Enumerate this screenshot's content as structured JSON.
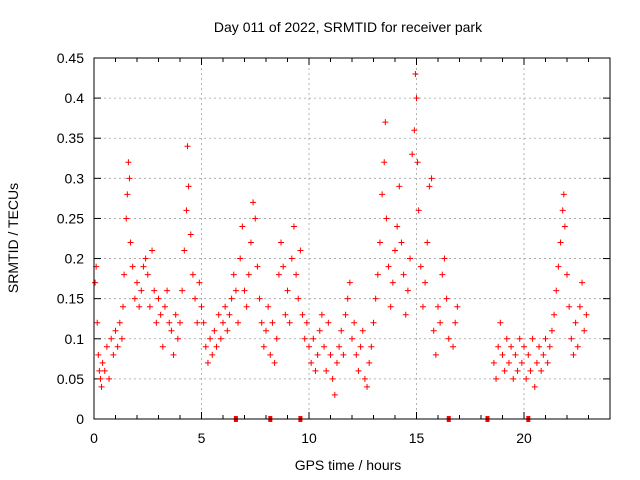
{
  "chart_data": {
    "type": "scatter",
    "title": "Day 011 of 2022, SRMTID for receiver park",
    "xlabel": "GPS time / hours",
    "ylabel": "SRMTID / TECUs",
    "xlim": [
      0,
      24
    ],
    "ylim": [
      0,
      0.45
    ],
    "xticks": [
      0,
      5,
      10,
      15,
      20
    ],
    "yticks": [
      0,
      0.05,
      0.1,
      0.15,
      0.2,
      0.25,
      0.3,
      0.35,
      0.4,
      0.45
    ],
    "ytick_labels": [
      "0",
      "0.05",
      "0.1",
      "0.15",
      "0.2",
      "0.25",
      "0.3",
      "0.35",
      "0.4",
      "0.45"
    ],
    "grid": true,
    "marker": "+",
    "color": "#ff0000",
    "series": [
      {
        "name": "SRMTID",
        "points": [
          [
            0.05,
            0.17
          ],
          [
            0.1,
            0.19
          ],
          [
            0.15,
            0.12
          ],
          [
            0.2,
            0.08
          ],
          [
            0.25,
            0.06
          ],
          [
            0.3,
            0.05
          ],
          [
            0.35,
            0.04
          ],
          [
            0.4,
            0.07
          ],
          [
            0.5,
            0.06
          ],
          [
            0.6,
            0.09
          ],
          [
            0.7,
            0.05
          ],
          [
            0.8,
            0.1
          ],
          [
            0.9,
            0.08
          ],
          [
            1.0,
            0.11
          ],
          [
            1.1,
            0.09
          ],
          [
            1.2,
            0.12
          ],
          [
            1.3,
            0.1
          ],
          [
            1.35,
            0.14
          ],
          [
            1.4,
            0.18
          ],
          [
            1.5,
            0.25
          ],
          [
            1.55,
            0.28
          ],
          [
            1.6,
            0.32
          ],
          [
            1.65,
            0.3
          ],
          [
            1.7,
            0.22
          ],
          [
            1.8,
            0.19
          ],
          [
            1.9,
            0.15
          ],
          [
            2.0,
            0.17
          ],
          [
            2.1,
            0.14
          ],
          [
            2.2,
            0.16
          ],
          [
            2.3,
            0.19
          ],
          [
            2.4,
            0.2
          ],
          [
            2.5,
            0.18
          ],
          [
            2.6,
            0.14
          ],
          [
            2.7,
            0.21
          ],
          [
            2.8,
            0.16
          ],
          [
            2.9,
            0.12
          ],
          [
            3.0,
            0.15
          ],
          [
            3.1,
            0.13
          ],
          [
            3.2,
            0.09
          ],
          [
            3.3,
            0.14
          ],
          [
            3.4,
            0.16
          ],
          [
            3.5,
            0.12
          ],
          [
            3.6,
            0.11
          ],
          [
            3.7,
            0.08
          ],
          [
            3.8,
            0.13
          ],
          [
            3.9,
            0.1
          ],
          [
            4.0,
            0.12
          ],
          [
            4.1,
            0.16
          ],
          [
            4.2,
            0.21
          ],
          [
            4.3,
            0.26
          ],
          [
            4.35,
            0.34
          ],
          [
            4.4,
            0.29
          ],
          [
            4.5,
            0.23
          ],
          [
            4.6,
            0.18
          ],
          [
            4.7,
            0.15
          ],
          [
            4.8,
            0.12
          ],
          [
            4.9,
            0.17
          ],
          [
            5.0,
            0.14
          ],
          [
            5.1,
            0.12
          ],
          [
            5.2,
            0.09
          ],
          [
            5.3,
            0.07
          ],
          [
            5.4,
            0.1
          ],
          [
            5.5,
            0.08
          ],
          [
            5.6,
            0.11
          ],
          [
            5.7,
            0.09
          ],
          [
            5.8,
            0.13
          ],
          [
            5.9,
            0.1
          ],
          [
            6.0,
            0.12
          ],
          [
            6.1,
            0.14
          ],
          [
            6.2,
            0.11
          ],
          [
            6.3,
            0.13
          ],
          [
            6.4,
            0.15
          ],
          [
            6.5,
            0.18
          ],
          [
            6.6,
            0.16
          ],
          [
            6.7,
            0.12
          ],
          [
            6.8,
            0.2
          ],
          [
            6.9,
            0.24
          ],
          [
            7.0,
            0.16
          ],
          [
            7.1,
            0.14
          ],
          [
            7.2,
            0.18
          ],
          [
            7.3,
            0.22
          ],
          [
            7.4,
            0.27
          ],
          [
            7.5,
            0.25
          ],
          [
            7.6,
            0.19
          ],
          [
            7.7,
            0.15
          ],
          [
            7.8,
            0.12
          ],
          [
            7.9,
            0.09
          ],
          [
            8.0,
            0.11
          ],
          [
            8.1,
            0.14
          ],
          [
            8.2,
            0.08
          ],
          [
            8.3,
            0.12
          ],
          [
            8.4,
            0.07
          ],
          [
            8.5,
            0.1
          ],
          [
            8.6,
            0.18
          ],
          [
            8.7,
            0.22
          ],
          [
            8.8,
            0.19
          ],
          [
            8.9,
            0.13
          ],
          [
            9.0,
            0.16
          ],
          [
            9.1,
            0.12
          ],
          [
            9.2,
            0.2
          ],
          [
            9.3,
            0.24
          ],
          [
            9.4,
            0.18
          ],
          [
            9.5,
            0.15
          ],
          [
            9.6,
            0.21
          ],
          [
            9.7,
            0.13
          ],
          [
            9.8,
            0.1
          ],
          [
            9.9,
            0.12
          ],
          [
            10.0,
            0.09
          ],
          [
            10.1,
            0.07
          ],
          [
            10.2,
            0.1
          ],
          [
            10.3,
            0.06
          ],
          [
            10.4,
            0.08
          ],
          [
            10.5,
            0.11
          ],
          [
            10.6,
            0.13
          ],
          [
            10.7,
            0.09
          ],
          [
            10.8,
            0.06
          ],
          [
            10.9,
            0.12
          ],
          [
            11.0,
            0.08
          ],
          [
            11.1,
            0.05
          ],
          [
            11.2,
            0.03
          ],
          [
            11.3,
            0.07
          ],
          [
            11.4,
            0.09
          ],
          [
            11.5,
            0.11
          ],
          [
            11.6,
            0.08
          ],
          [
            11.7,
            0.13
          ],
          [
            11.8,
            0.15
          ],
          [
            11.9,
            0.17
          ],
          [
            12.0,
            0.1
          ],
          [
            12.1,
            0.12
          ],
          [
            12.2,
            0.08
          ],
          [
            12.3,
            0.06
          ],
          [
            12.4,
            0.09
          ],
          [
            12.5,
            0.11
          ],
          [
            12.6,
            0.05
          ],
          [
            12.7,
            0.04
          ],
          [
            12.8,
            0.07
          ],
          [
            12.9,
            0.09
          ],
          [
            13.0,
            0.12
          ],
          [
            13.1,
            0.15
          ],
          [
            13.2,
            0.18
          ],
          [
            13.3,
            0.22
          ],
          [
            13.4,
            0.28
          ],
          [
            13.5,
            0.32
          ],
          [
            13.55,
            0.37
          ],
          [
            13.6,
            0.25
          ],
          [
            13.7,
            0.19
          ],
          [
            13.8,
            0.14
          ],
          [
            13.9,
            0.17
          ],
          [
            14.0,
            0.21
          ],
          [
            14.1,
            0.24
          ],
          [
            14.2,
            0.29
          ],
          [
            14.3,
            0.22
          ],
          [
            14.4,
            0.18
          ],
          [
            14.5,
            0.13
          ],
          [
            14.6,
            0.16
          ],
          [
            14.7,
            0.2
          ],
          [
            14.8,
            0.33
          ],
          [
            14.9,
            0.36
          ],
          [
            14.95,
            0.43
          ],
          [
            15.0,
            0.4
          ],
          [
            15.05,
            0.32
          ],
          [
            15.1,
            0.26
          ],
          [
            15.2,
            0.19
          ],
          [
            15.3,
            0.14
          ],
          [
            15.4,
            0.17
          ],
          [
            15.5,
            0.22
          ],
          [
            15.6,
            0.29
          ],
          [
            15.7,
            0.3
          ],
          [
            15.8,
            0.11
          ],
          [
            15.9,
            0.08
          ],
          [
            16.0,
            0.14
          ],
          [
            16.1,
            0.12
          ],
          [
            16.2,
            0.18
          ],
          [
            16.3,
            0.2
          ],
          [
            16.4,
            0.15
          ],
          [
            16.5,
            0.1
          ],
          [
            16.7,
            0.09
          ],
          [
            16.8,
            0.12
          ],
          [
            16.9,
            0.14
          ],
          [
            18.6,
            0.07
          ],
          [
            18.7,
            0.05
          ],
          [
            18.8,
            0.09
          ],
          [
            18.9,
            0.12
          ],
          [
            19.0,
            0.08
          ],
          [
            19.1,
            0.06
          ],
          [
            19.2,
            0.1
          ],
          [
            19.3,
            0.07
          ],
          [
            19.4,
            0.09
          ],
          [
            19.5,
            0.05
          ],
          [
            19.6,
            0.08
          ],
          [
            19.7,
            0.06
          ],
          [
            19.8,
            0.1
          ],
          [
            19.9,
            0.07
          ],
          [
            20.0,
            0.09
          ],
          [
            20.1,
            0.05
          ],
          [
            20.2,
            0.08
          ],
          [
            20.3,
            0.06
          ],
          [
            20.4,
            0.1
          ],
          [
            20.5,
            0.04
          ],
          [
            20.6,
            0.07
          ],
          [
            20.7,
            0.09
          ],
          [
            20.8,
            0.06
          ],
          [
            20.9,
            0.08
          ],
          [
            21.0,
            0.1
          ],
          [
            21.1,
            0.07
          ],
          [
            21.2,
            0.09
          ],
          [
            21.3,
            0.11
          ],
          [
            21.4,
            0.13
          ],
          [
            21.5,
            0.16
          ],
          [
            21.6,
            0.19
          ],
          [
            21.7,
            0.22
          ],
          [
            21.8,
            0.26
          ],
          [
            21.85,
            0.28
          ],
          [
            21.9,
            0.24
          ],
          [
            22.0,
            0.18
          ],
          [
            22.1,
            0.14
          ],
          [
            22.2,
            0.1
          ],
          [
            22.3,
            0.08
          ],
          [
            22.4,
            0.12
          ],
          [
            22.5,
            0.09
          ],
          [
            22.6,
            0.14
          ],
          [
            22.7,
            0.17
          ],
          [
            22.8,
            0.11
          ],
          [
            22.9,
            0.13
          ]
        ]
      }
    ],
    "baseline_markers_x": [
      6.6,
      8.2,
      9.6,
      16.5,
      18.3,
      20.2
    ]
  }
}
